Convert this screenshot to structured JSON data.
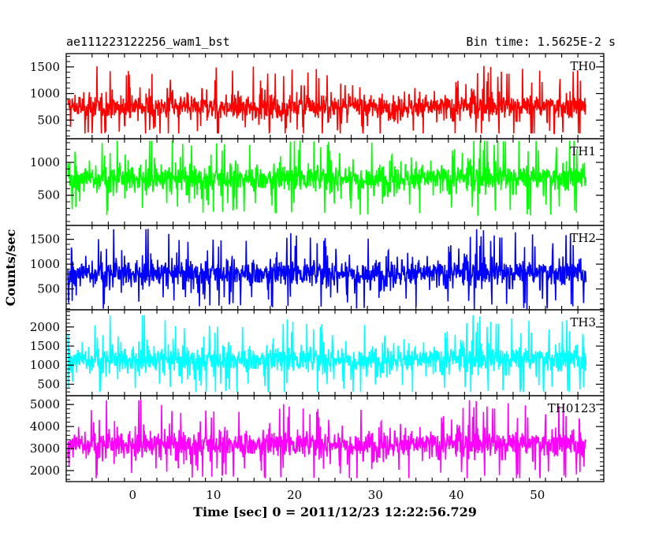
{
  "chart_data": {
    "type": "line",
    "title_left": "ae111223122256_wam1_bst",
    "title_right": "Bin time: 1.5625E-2 s",
    "xlabel": "Time [sec] 0 = 2011/12/23 12:22:56.729",
    "ylabel": "Counts/sec",
    "xlim": [
      -8.2,
      58.2
    ],
    "x_ticks": [
      0,
      10,
      20,
      30,
      40,
      50
    ],
    "x_data_range": [
      -8,
      56
    ],
    "bin_time": 0.015625,
    "panels": [
      {
        "name": "TH0",
        "color": "#ff0000",
        "ylim": [
          150,
          1750
        ],
        "y_ticks": [
          500,
          1000,
          1500
        ],
        "mean": 750,
        "spread": 200,
        "min_seen": 250,
        "max_seen": 1750
      },
      {
        "name": "TH1",
        "color": "#00ff00",
        "ylim": [
          40,
          1360
        ],
        "y_ticks": [
          500,
          1000
        ],
        "mean": 760,
        "spread": 180,
        "min_seen": 80,
        "max_seen": 1330
      },
      {
        "name": "TH2",
        "color": "#0000ff",
        "ylim": [
          80,
          1780
        ],
        "y_ticks": [
          500,
          1000,
          1500
        ],
        "mean": 820,
        "spread": 230,
        "min_seen": 80,
        "max_seen": 1780
      },
      {
        "name": "TH3",
        "color": "#00ffff",
        "ylim": [
          200,
          2450
        ],
        "y_ticks": [
          500,
          1000,
          1500,
          2000
        ],
        "mean": 1150,
        "spread": 300,
        "min_seen": 300,
        "max_seen": 2450
      },
      {
        "name": "TH0123",
        "color": "#ff00ff",
        "ylim": [
          1500,
          5400
        ],
        "y_ticks": [
          2000,
          3000,
          4000,
          5000
        ],
        "mean": 3200,
        "spread": 520,
        "min_seen": 1650,
        "max_seen": 5300
      }
    ]
  }
}
